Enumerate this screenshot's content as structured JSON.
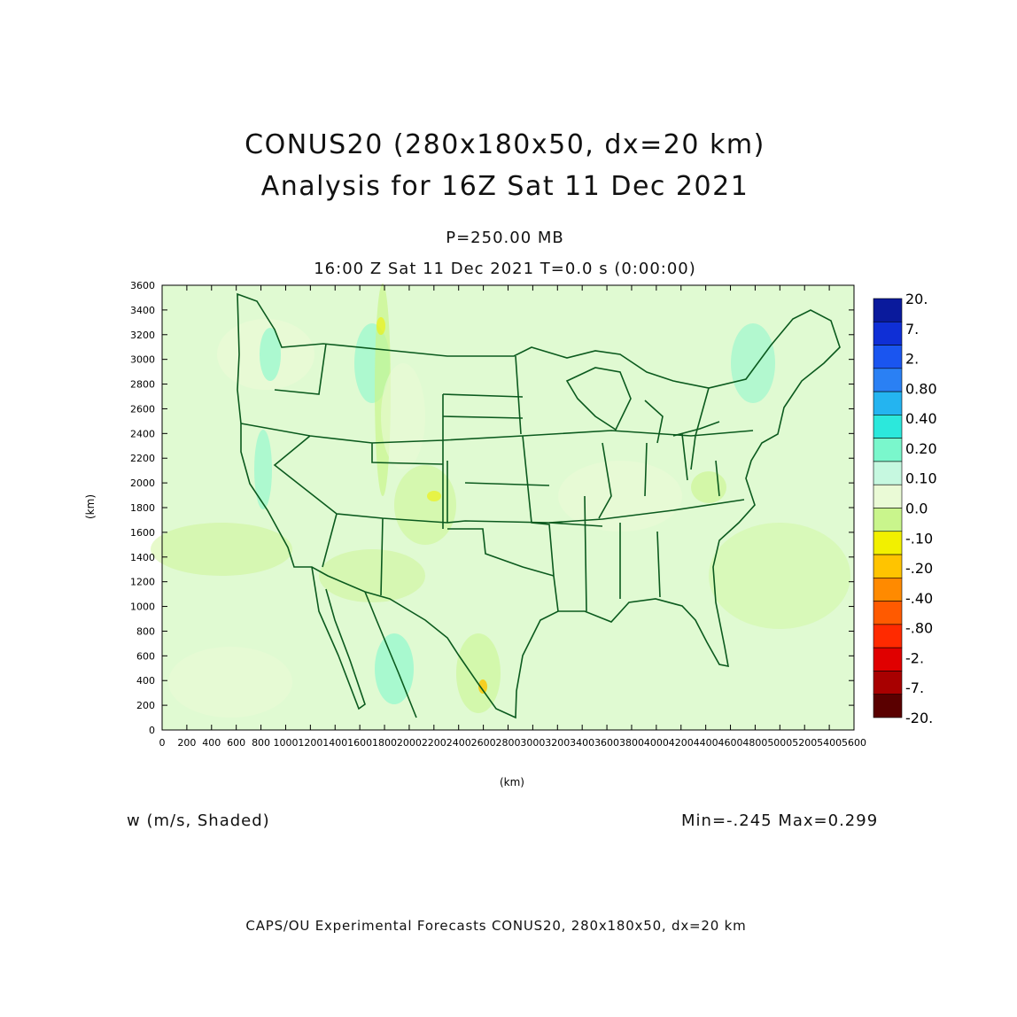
{
  "header": {
    "title_line1": "CONUS20 (280x180x50, dx=20 km)",
    "title_line2": "Analysis for 16Z Sat 11 Dec 2021",
    "level": "P=250.00 MB",
    "valid_time": "16:00 Z Sat 11 Dec 2021    T=0.0 s (0:00:00)"
  },
  "axes": {
    "x_unit": "(km)",
    "y_unit": "(km)",
    "x_ticks": [
      "0",
      "200",
      "400",
      "600",
      "800",
      "1000",
      "1200",
      "1400",
      "1600",
      "1800",
      "2000",
      "2200",
      "2400",
      "2600",
      "2800",
      "3000",
      "3200",
      "3400",
      "3600",
      "3800",
      "4000",
      "4200",
      "4400",
      "4600",
      "4800",
      "5000",
      "5200",
      "5400",
      "5600"
    ],
    "y_ticks": [
      "0",
      "200",
      "400",
      "600",
      "800",
      "1000",
      "1200",
      "1400",
      "1600",
      "1800",
      "2000",
      "2200",
      "2400",
      "2600",
      "2800",
      "3000",
      "3200",
      "3400",
      "3600"
    ],
    "x_range": [
      0,
      5600
    ],
    "y_range": [
      0,
      3600
    ]
  },
  "colorbar": {
    "labels": [
      "20.",
      "7.",
      "2.",
      "0.80",
      "0.40",
      "0.20",
      "0.10",
      "0.0",
      "-.10",
      "-.20",
      "-.40",
      "-.80",
      "-2.",
      "-7.",
      "-20."
    ],
    "colors": [
      "#0a1a9c",
      "#0f2fd6",
      "#1a55f0",
      "#2a80f4",
      "#24b4f0",
      "#2ce8dc",
      "#7af7cc",
      "#c6f8e0",
      "#eafad6",
      "#c9f58c",
      "#f2f000",
      "#ffc400",
      "#ff8a00",
      "#ff5a00",
      "#ff2a00",
      "#e00000",
      "#a80000",
      "#5a0000"
    ]
  },
  "field": {
    "variable": "w (m/s, Shaded)",
    "minmax": "Min=-.245  Max=0.299",
    "background_color": "#e0fad2",
    "boundary_color": "#0b5a1e"
  },
  "footer": "CAPS/OU Experimental Forecasts  CONUS20, 280x180x50, dx=20 km"
}
